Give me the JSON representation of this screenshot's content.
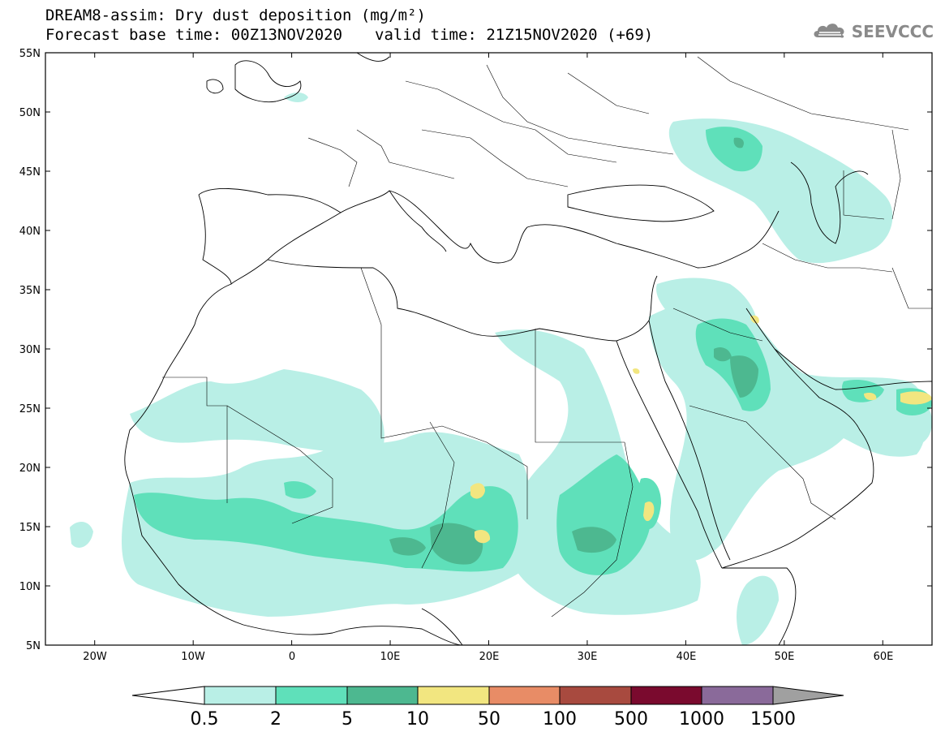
{
  "title": {
    "line1": "DREAM8-assim: Dry dust deposition (mg/m²)",
    "base_time": "Forecast base time: 00Z13NOV2020",
    "valid_time": "valid time: 21Z15NOV2020 (+69)"
  },
  "logo": {
    "text": "SEEVCCC",
    "icon": "cloud-icon"
  },
  "map": {
    "lon_range": [
      -25,
      65
    ],
    "lat_range": [
      5,
      55
    ],
    "lat_ticks": [
      "55N",
      "50N",
      "45N",
      "40N",
      "35N",
      "30N",
      "25N",
      "20N",
      "15N",
      "10N",
      "5N"
    ],
    "lon_ticks": [
      "20W",
      "10W",
      "0",
      "10E",
      "20E",
      "30E",
      "40E",
      "50E",
      "60E"
    ]
  },
  "colorbar": {
    "labels": [
      "0.5",
      "2",
      "5",
      "10",
      "50",
      "100",
      "500",
      "1000",
      "1500"
    ],
    "colors": [
      "#b9efe6",
      "#5fe0ba",
      "#4db890",
      "#f2e680",
      "#e88c66",
      "#a84a3f",
      "#7a0a2e",
      "#8a6a9a",
      "#a0a0a0"
    ],
    "under_color": "#ffffff",
    "over_color": "#a0a0a0"
  }
}
